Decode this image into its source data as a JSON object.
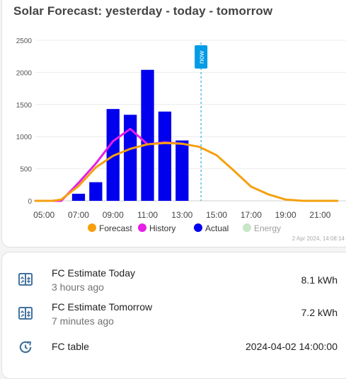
{
  "card": {
    "title": "Solar Forecast: yesterday - today - tomorrow"
  },
  "chart_data": {
    "type": "bar+line",
    "title": "Solar Forecast: yesterday - today - tomorrow",
    "ylim": [
      0,
      2500
    ],
    "y_ticks": [
      "0",
      "500",
      "1000",
      "1500",
      "2000",
      "2500"
    ],
    "x_ticks": [
      "05:00",
      "07:00",
      "09:00",
      "11:00",
      "13:00",
      "15:00",
      "17:00",
      "19:00",
      "21:00"
    ],
    "now_label": "now",
    "now_hour": 14.1,
    "timestamp": "2 Apr 2024, 14:08:14",
    "legend": [
      {
        "name": "Forecast",
        "color": "#f5a00f"
      },
      {
        "name": "History",
        "color": "#e61ee6"
      },
      {
        "name": "Actual",
        "color": "#0000ee"
      },
      {
        "name": "Energy",
        "color": "#c8e6c9"
      }
    ],
    "series": [
      {
        "name": "Actual",
        "kind": "bar",
        "color": "#0000ee",
        "x": [
          7,
          8,
          9,
          10,
          11,
          12,
          13
        ],
        "values": [
          110,
          290,
          1430,
          1340,
          2040,
          1390,
          940
        ]
      },
      {
        "name": "History",
        "kind": "line",
        "color": "#e61ee6",
        "x": [
          4.5,
          5.5,
          6,
          7,
          8,
          9,
          10,
          11,
          12,
          13
        ],
        "values": [
          0,
          0,
          0,
          280,
          580,
          930,
          1120,
          880,
          910,
          890
        ]
      },
      {
        "name": "Forecast",
        "kind": "line",
        "color": "#f5a00f",
        "x": [
          4.5,
          5.5,
          6,
          7,
          8,
          9,
          10,
          11,
          12,
          13,
          14,
          15,
          16,
          17,
          18,
          19,
          20,
          21,
          22
        ],
        "values": [
          0,
          0,
          20,
          230,
          520,
          700,
          810,
          880,
          900,
          890,
          840,
          710,
          470,
          220,
          100,
          20,
          0,
          0,
          0
        ]
      }
    ]
  },
  "entities": [
    {
      "name": "FC Estimate Today",
      "secondary": "3 hours ago",
      "state": "8.1 kWh",
      "icon": "chart-table-icon"
    },
    {
      "name": "FC Estimate Tomorrow",
      "secondary": "7 minutes ago",
      "state": "7.2 kWh",
      "icon": "chart-table-icon"
    },
    {
      "name": "FC table",
      "secondary": "",
      "state": "2024-04-02 14:00:00",
      "icon": "history-clock-icon"
    }
  ],
  "colors": {
    "icon": "#44739e",
    "now_line": "#039be5"
  }
}
